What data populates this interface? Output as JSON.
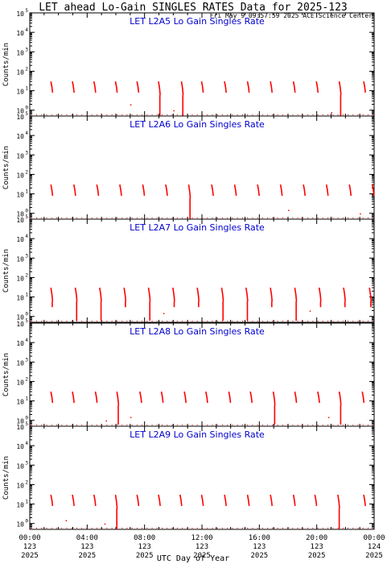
{
  "title": "LET ahead Lo-Gain SINGLES RATES Data for 2025-123",
  "timestamp": "Fri May  9 09:57:59 2025 ACE Science Center",
  "xlabel": "UTC Day of Year",
  "colors": {
    "data": "#ff0000",
    "panel_title": "#0000cc",
    "axis": "#000000",
    "background": "#ffffff"
  },
  "x_ticks": [
    {
      "hour": 0,
      "time": "00:00",
      "doy": "123",
      "year": "2025"
    },
    {
      "hour": 4,
      "time": "04:00",
      "doy": "123",
      "year": "2025"
    },
    {
      "hour": 8,
      "time": "08:00",
      "doy": "123",
      "year": "2025"
    },
    {
      "hour": 12,
      "time": "12:00",
      "doy": "123",
      "year": "2025"
    },
    {
      "hour": 16,
      "time": "16:00",
      "doy": "123",
      "year": "2025"
    },
    {
      "hour": 20,
      "time": "20:00",
      "doy": "123",
      "year": "2025"
    },
    {
      "hour": 24,
      "time": "00:00",
      "doy": "124",
      "year": "2025"
    }
  ],
  "chart_data": [
    {
      "type": "scatter",
      "title": "LET L2A5 Lo Gain Singles Rate",
      "ylabel": "Counts/min",
      "yscale": "log",
      "ylim": [
        0.5,
        100000
      ],
      "xlim": [
        0,
        24
      ],
      "y_ticks": [
        "10^0",
        "10^1",
        "10^2",
        "10^3",
        "10^4",
        "10^5"
      ],
      "ytick_base": "10",
      "ytick_exps": [
        "0",
        "1",
        "2",
        "3",
        "4",
        "5"
      ],
      "bursts": [
        {
          "hour": 1.5,
          "peak": 30,
          "low": 8
        },
        {
          "hour": 3.0,
          "peak": 30,
          "low": 8
        },
        {
          "hour": 4.5,
          "peak": 30,
          "low": 8
        },
        {
          "hour": 6.0,
          "peak": 30,
          "low": 8
        },
        {
          "hour": 7.5,
          "peak": 30,
          "low": 8
        },
        {
          "hour": 9.0,
          "peak": 30,
          "low": 0.5
        },
        {
          "hour": 10.6,
          "peak": 30,
          "low": 0.5
        },
        {
          "hour": 12.0,
          "peak": 30,
          "low": 8
        },
        {
          "hour": 13.6,
          "peak": 30,
          "low": 8
        },
        {
          "hour": 15.2,
          "peak": 30,
          "low": 8
        },
        {
          "hour": 16.8,
          "peak": 30,
          "low": 8
        },
        {
          "hour": 18.4,
          "peak": 30,
          "low": 8
        },
        {
          "hour": 20.0,
          "peak": 30,
          "low": 8
        },
        {
          "hour": 21.6,
          "peak": 30,
          "low": 0.5
        },
        {
          "hour": 23.3,
          "peak": 30,
          "low": 8
        }
      ],
      "points": [
        {
          "hour": 7.0,
          "value": 2
        },
        {
          "hour": 10.0,
          "value": 1
        },
        {
          "hour": 21.0,
          "value": 0.8
        }
      ]
    },
    {
      "type": "scatter",
      "title": "LET L2A6 Lo Gain Singles Rate",
      "ylabel": "Counts/min",
      "yscale": "log",
      "ylim": [
        0.5,
        100000
      ],
      "xlim": [
        0,
        24
      ],
      "ytick_base": "10",
      "ytick_exps": [
        "0",
        "1",
        "2",
        "3",
        "4",
        "5"
      ],
      "bursts": [
        {
          "hour": 1.5,
          "peak": 30,
          "low": 8
        },
        {
          "hour": 3.1,
          "peak": 30,
          "low": 8
        },
        {
          "hour": 4.7,
          "peak": 30,
          "low": 8
        },
        {
          "hour": 6.3,
          "peak": 30,
          "low": 8
        },
        {
          "hour": 7.9,
          "peak": 30,
          "low": 8
        },
        {
          "hour": 9.5,
          "peak": 30,
          "low": 8
        },
        {
          "hour": 11.1,
          "peak": 30,
          "low": 0.5
        },
        {
          "hour": 12.7,
          "peak": 30,
          "low": 8
        },
        {
          "hour": 14.3,
          "peak": 30,
          "low": 8
        },
        {
          "hour": 15.9,
          "peak": 30,
          "low": 8
        },
        {
          "hour": 17.5,
          "peak": 30,
          "low": 8
        },
        {
          "hour": 19.1,
          "peak": 30,
          "low": 8
        },
        {
          "hour": 20.7,
          "peak": 30,
          "low": 8
        },
        {
          "hour": 22.3,
          "peak": 30,
          "low": 8
        },
        {
          "hour": 23.9,
          "peak": 30,
          "low": 8
        }
      ],
      "points": [
        {
          "hour": 18.0,
          "value": 1.5
        },
        {
          "hour": 23.0,
          "value": 1
        }
      ]
    },
    {
      "type": "scatter",
      "title": "LET L2A7 Lo Gain Singles Rate",
      "ylabel": "Counts/min",
      "yscale": "log",
      "ylim": [
        0.5,
        100000
      ],
      "xlim": [
        0,
        24
      ],
      "ytick_base": "10",
      "ytick_exps": [
        "0",
        "1",
        "2",
        "3",
        "4",
        "5"
      ],
      "bursts": [
        {
          "hour": 1.5,
          "peak": 30,
          "low": 3
        },
        {
          "hour": 3.2,
          "peak": 30,
          "low": 0.6
        },
        {
          "hour": 4.9,
          "peak": 30,
          "low": 0.6
        },
        {
          "hour": 6.6,
          "peak": 30,
          "low": 3
        },
        {
          "hour": 8.3,
          "peak": 30,
          "low": 0.6
        },
        {
          "hour": 10.0,
          "peak": 30,
          "low": 3
        },
        {
          "hour": 11.7,
          "peak": 30,
          "low": 3
        },
        {
          "hour": 13.4,
          "peak": 30,
          "low": 0.6
        },
        {
          "hour": 15.1,
          "peak": 30,
          "low": 0.6
        },
        {
          "hour": 16.8,
          "peak": 30,
          "low": 3
        },
        {
          "hour": 18.5,
          "peak": 30,
          "low": 0.6
        },
        {
          "hour": 20.2,
          "peak": 30,
          "low": 3
        },
        {
          "hour": 21.9,
          "peak": 30,
          "low": 3
        },
        {
          "hour": 23.7,
          "peak": 30,
          "low": 3
        }
      ],
      "points": [
        {
          "hour": 9.3,
          "value": 1.5
        },
        {
          "hour": 19.5,
          "value": 2
        }
      ]
    },
    {
      "type": "scatter",
      "title": "LET L2A8 Lo Gain Singles Rate",
      "ylabel": "Counts/min",
      "yscale": "log",
      "ylim": [
        0.5,
        100000
      ],
      "xlim": [
        0,
        24
      ],
      "ytick_base": "10",
      "ytick_exps": [
        "0",
        "1",
        "2",
        "3",
        "4",
        "5"
      ],
      "bursts": [
        {
          "hour": 1.5,
          "peak": 30,
          "low": 8
        },
        {
          "hour": 3.0,
          "peak": 30,
          "low": 8
        },
        {
          "hour": 4.6,
          "peak": 30,
          "low": 8
        },
        {
          "hour": 6.1,
          "peak": 30,
          "low": 0.6
        },
        {
          "hour": 7.7,
          "peak": 30,
          "low": 8
        },
        {
          "hour": 9.2,
          "peak": 30,
          "low": 8
        },
        {
          "hour": 10.8,
          "peak": 30,
          "low": 8
        },
        {
          "hour": 12.3,
          "peak": 30,
          "low": 8
        },
        {
          "hour": 13.9,
          "peak": 30,
          "low": 8
        },
        {
          "hour": 15.4,
          "peak": 30,
          "low": 8
        },
        {
          "hour": 17.0,
          "peak": 30,
          "low": 0.6
        },
        {
          "hour": 18.5,
          "peak": 30,
          "low": 8
        },
        {
          "hour": 20.1,
          "peak": 30,
          "low": 8
        },
        {
          "hour": 21.6,
          "peak": 30,
          "low": 0.6
        },
        {
          "hour": 23.2,
          "peak": 30,
          "low": 8
        }
      ],
      "points": [
        {
          "hour": 5.3,
          "value": 1
        },
        {
          "hour": 7.0,
          "value": 1.5
        },
        {
          "hour": 20.8,
          "value": 1.5
        }
      ]
    },
    {
      "type": "scatter",
      "title": "LET L2A9 Lo Gain Singles Rate",
      "ylabel": "Counts/min",
      "yscale": "log",
      "ylim": [
        0.5,
        100000
      ],
      "xlim": [
        0,
        24
      ],
      "ytick_base": "10",
      "ytick_exps": [
        "0",
        "1",
        "2",
        "3",
        "4",
        "5"
      ],
      "bursts": [
        {
          "hour": 1.5,
          "peak": 30,
          "low": 8
        },
        {
          "hour": 3.0,
          "peak": 30,
          "low": 8
        },
        {
          "hour": 4.5,
          "peak": 30,
          "low": 8
        },
        {
          "hour": 6.0,
          "peak": 30,
          "low": 0.5
        },
        {
          "hour": 7.5,
          "peak": 30,
          "low": 8
        },
        {
          "hour": 9.0,
          "peak": 30,
          "low": 8
        },
        {
          "hour": 10.5,
          "peak": 30,
          "low": 8
        },
        {
          "hour": 12.0,
          "peak": 30,
          "low": 8
        },
        {
          "hour": 13.6,
          "peak": 30,
          "low": 8
        },
        {
          "hour": 15.2,
          "peak": 30,
          "low": 8
        },
        {
          "hour": 16.8,
          "peak": 30,
          "low": 8
        },
        {
          "hour": 18.4,
          "peak": 30,
          "low": 8
        },
        {
          "hour": 19.9,
          "peak": 30,
          "low": 8
        },
        {
          "hour": 21.5,
          "peak": 30,
          "low": 0.5
        },
        {
          "hour": 23.3,
          "peak": 30,
          "low": 8
        }
      ],
      "points": [
        {
          "hour": 2.5,
          "value": 1.5
        },
        {
          "hour": 5.2,
          "value": 1
        }
      ]
    }
  ]
}
